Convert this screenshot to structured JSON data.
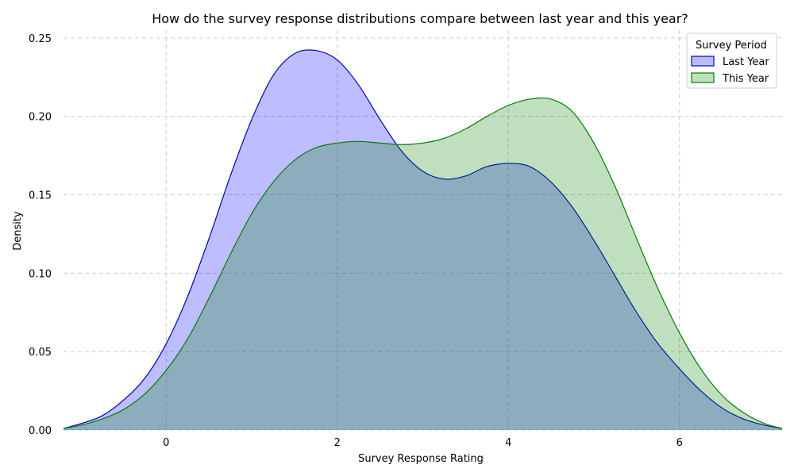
{
  "chart_data": {
    "type": "area",
    "title": "How do the survey response distributions compare between last year and this year?",
    "xlabel": "Survey Response Rating",
    "ylabel": "Density",
    "xlim": [
      -1.2,
      7.2
    ],
    "ylim": [
      0,
      0.25
    ],
    "xticks": [
      0,
      2,
      4,
      6
    ],
    "yticks": [
      0.0,
      0.05,
      0.1,
      0.15,
      0.2,
      0.25
    ],
    "grid": true,
    "legend": {
      "title": "Survey Period",
      "placement": "top-right"
    },
    "series": [
      {
        "name": "Last Year",
        "line_color": "#0000cc",
        "fill_color": "#bbbcff",
        "x": [
          -1.2,
          -1.0,
          -0.75,
          -0.5,
          -0.25,
          0.0,
          0.25,
          0.5,
          0.75,
          1.0,
          1.25,
          1.5,
          1.75,
          2.0,
          2.25,
          2.5,
          2.75,
          3.0,
          3.25,
          3.5,
          3.75,
          4.0,
          4.25,
          4.5,
          4.75,
          5.0,
          5.25,
          5.5,
          5.75,
          6.0,
          6.25,
          6.5,
          6.75,
          7.0,
          7.2
        ],
        "y": [
          0.001,
          0.004,
          0.009,
          0.019,
          0.033,
          0.055,
          0.085,
          0.122,
          0.162,
          0.198,
          0.226,
          0.24,
          0.242,
          0.236,
          0.22,
          0.198,
          0.178,
          0.165,
          0.16,
          0.162,
          0.168,
          0.17,
          0.168,
          0.158,
          0.142,
          0.121,
          0.098,
          0.075,
          0.055,
          0.039,
          0.025,
          0.014,
          0.007,
          0.003,
          0.001
        ]
      },
      {
        "name": "This Year",
        "line_color": "#008000",
        "fill_color": "#c0dfc0",
        "x": [
          -1.2,
          -1.0,
          -0.75,
          -0.5,
          -0.25,
          0.0,
          0.25,
          0.5,
          0.75,
          1.0,
          1.25,
          1.5,
          1.75,
          2.0,
          2.25,
          2.5,
          2.75,
          3.0,
          3.25,
          3.5,
          3.75,
          4.0,
          4.25,
          4.5,
          4.75,
          5.0,
          5.25,
          5.5,
          5.75,
          6.0,
          6.25,
          6.5,
          6.75,
          7.0,
          7.2
        ],
        "y": [
          0.001,
          0.003,
          0.007,
          0.013,
          0.023,
          0.038,
          0.058,
          0.084,
          0.112,
          0.138,
          0.158,
          0.172,
          0.18,
          0.183,
          0.184,
          0.183,
          0.182,
          0.183,
          0.186,
          0.192,
          0.2,
          0.207,
          0.211,
          0.211,
          0.203,
          0.183,
          0.155,
          0.122,
          0.09,
          0.062,
          0.039,
          0.022,
          0.011,
          0.004,
          0.001
        ]
      }
    ]
  }
}
